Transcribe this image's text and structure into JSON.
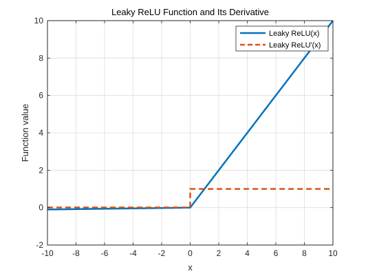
{
  "chart_data": {
    "type": "line",
    "title": "Leaky ReLU Function and Its Derivative",
    "xlabel": "x",
    "ylabel": "Function value",
    "xlim": [
      -10,
      10
    ],
    "ylim": [
      -2,
      10
    ],
    "x_ticks": [
      -10,
      -8,
      -6,
      -4,
      -2,
      0,
      2,
      4,
      6,
      8,
      10
    ],
    "y_ticks": [
      -2,
      0,
      2,
      4,
      6,
      8,
      10
    ],
    "grid": true,
    "legend_position": "top-right",
    "series": [
      {
        "name": "Leaky ReLU(x)",
        "color": "#0072BD",
        "style": "solid",
        "x": [
          -10,
          0,
          10
        ],
        "y": [
          -0.1,
          0,
          10
        ]
      },
      {
        "name": "Leaky ReLU'(x)",
        "color": "#D95319",
        "style": "dashed",
        "x": [
          -10,
          0,
          0,
          10
        ],
        "y": [
          0.01,
          0.01,
          1,
          1
        ]
      }
    ]
  }
}
